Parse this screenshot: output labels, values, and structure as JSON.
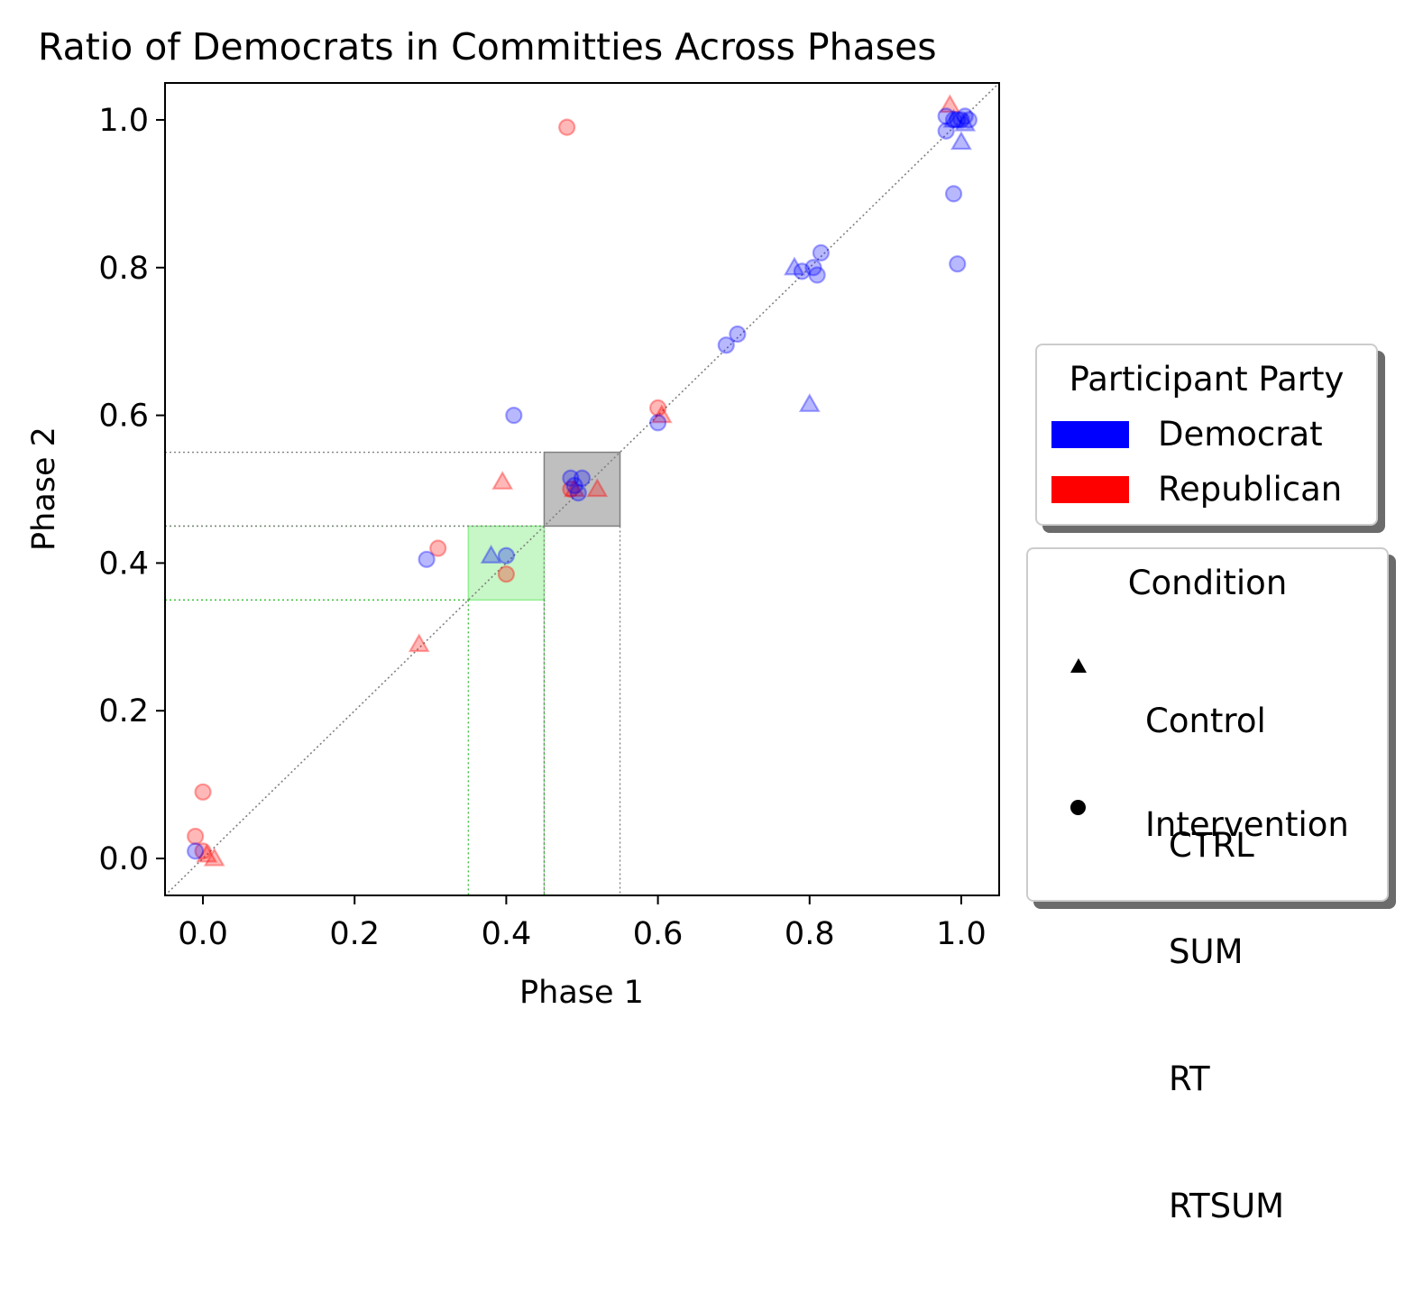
{
  "chart_data": {
    "type": "scatter",
    "title": "Ratio of Democrats in Committies Across Phases",
    "xlabel": "Phase 1",
    "ylabel": "Phase 2",
    "xlim": [
      -0.05,
      1.05
    ],
    "ylim": [
      -0.05,
      1.05
    ],
    "xticks": [
      0.0,
      0.2,
      0.4,
      0.6,
      0.8,
      1.0
    ],
    "yticks": [
      0.0,
      0.2,
      0.4,
      0.6,
      0.8,
      1.0
    ],
    "xtick_labels": [
      "0.0",
      "0.2",
      "0.4",
      "0.6",
      "0.8",
      "1.0"
    ],
    "ytick_labels": [
      "0.0",
      "0.2",
      "0.4",
      "0.6",
      "0.8",
      "1.0"
    ],
    "grid": false,
    "diagonal_reference_line": true,
    "highlight_regions": [
      {
        "x": [
          0.35,
          0.45
        ],
        "y": [
          0.35,
          0.45
        ],
        "color": "#90ee90"
      },
      {
        "x": [
          0.45,
          0.55
        ],
        "y": [
          0.45,
          0.55
        ],
        "color": "#808080"
      }
    ],
    "colors": {
      "Democrat": "#0000ff",
      "Republican": "#ff0000"
    },
    "points": [
      {
        "x": 0.48,
        "y": 0.99,
        "party": "Republican",
        "marker": "circle"
      },
      {
        "x": 0.0,
        "y": 0.09,
        "party": "Republican",
        "marker": "circle"
      },
      {
        "x": -0.01,
        "y": 0.03,
        "party": "Republican",
        "marker": "circle"
      },
      {
        "x": 0.0,
        "y": 0.01,
        "party": "Republican",
        "marker": "circle"
      },
      {
        "x": 0.31,
        "y": 0.42,
        "party": "Republican",
        "marker": "circle"
      },
      {
        "x": 0.4,
        "y": 0.385,
        "party": "Republican",
        "marker": "circle"
      },
      {
        "x": 0.6,
        "y": 0.61,
        "party": "Republican",
        "marker": "circle"
      },
      {
        "x": 0.485,
        "y": 0.5,
        "party": "Republican",
        "marker": "circle"
      },
      {
        "x": 0.015,
        "y": 0.0,
        "party": "Republican",
        "marker": "triangle"
      },
      {
        "x": 0.005,
        "y": 0.005,
        "party": "Republican",
        "marker": "triangle"
      },
      {
        "x": 0.285,
        "y": 0.29,
        "party": "Republican",
        "marker": "triangle"
      },
      {
        "x": 0.395,
        "y": 0.51,
        "party": "Republican",
        "marker": "triangle"
      },
      {
        "x": 0.605,
        "y": 0.6,
        "party": "Republican",
        "marker": "triangle"
      },
      {
        "x": 0.52,
        "y": 0.5,
        "party": "Republican",
        "marker": "triangle"
      },
      {
        "x": 0.49,
        "y": 0.5,
        "party": "Republican",
        "marker": "triangle"
      },
      {
        "x": 0.985,
        "y": 1.02,
        "party": "Republican",
        "marker": "triangle"
      },
      {
        "x": -0.01,
        "y": 0.01,
        "party": "Democrat",
        "marker": "circle"
      },
      {
        "x": 0.295,
        "y": 0.405,
        "party": "Democrat",
        "marker": "circle"
      },
      {
        "x": 0.4,
        "y": 0.41,
        "party": "Democrat",
        "marker": "circle"
      },
      {
        "x": 0.41,
        "y": 0.6,
        "party": "Democrat",
        "marker": "circle"
      },
      {
        "x": 0.485,
        "y": 0.515,
        "party": "Democrat",
        "marker": "circle"
      },
      {
        "x": 0.5,
        "y": 0.515,
        "party": "Democrat",
        "marker": "circle"
      },
      {
        "x": 0.495,
        "y": 0.495,
        "party": "Democrat",
        "marker": "circle"
      },
      {
        "x": 0.49,
        "y": 0.505,
        "party": "Democrat",
        "marker": "circle"
      },
      {
        "x": 0.6,
        "y": 0.59,
        "party": "Democrat",
        "marker": "circle"
      },
      {
        "x": 0.69,
        "y": 0.695,
        "party": "Democrat",
        "marker": "circle"
      },
      {
        "x": 0.705,
        "y": 0.71,
        "party": "Democrat",
        "marker": "circle"
      },
      {
        "x": 0.79,
        "y": 0.795,
        "party": "Democrat",
        "marker": "circle"
      },
      {
        "x": 0.805,
        "y": 0.8,
        "party": "Democrat",
        "marker": "circle"
      },
      {
        "x": 0.81,
        "y": 0.79,
        "party": "Democrat",
        "marker": "circle"
      },
      {
        "x": 0.815,
        "y": 0.82,
        "party": "Democrat",
        "marker": "circle"
      },
      {
        "x": 0.99,
        "y": 0.9,
        "party": "Democrat",
        "marker": "circle"
      },
      {
        "x": 0.995,
        "y": 0.805,
        "party": "Democrat",
        "marker": "circle"
      },
      {
        "x": 0.98,
        "y": 0.985,
        "party": "Democrat",
        "marker": "circle"
      },
      {
        "x": 0.98,
        "y": 1.005,
        "party": "Democrat",
        "marker": "circle"
      },
      {
        "x": 0.99,
        "y": 1.0,
        "party": "Democrat",
        "marker": "circle"
      },
      {
        "x": 0.995,
        "y": 1.0,
        "party": "Democrat",
        "marker": "circle"
      },
      {
        "x": 1.0,
        "y": 1.0,
        "party": "Democrat",
        "marker": "circle"
      },
      {
        "x": 1.005,
        "y": 1.005,
        "party": "Democrat",
        "marker": "circle"
      },
      {
        "x": 1.01,
        "y": 1.0,
        "party": "Democrat",
        "marker": "circle"
      },
      {
        "x": 0.38,
        "y": 0.41,
        "party": "Democrat",
        "marker": "triangle"
      },
      {
        "x": 0.78,
        "y": 0.8,
        "party": "Democrat",
        "marker": "triangle"
      },
      {
        "x": 0.8,
        "y": 0.615,
        "party": "Democrat",
        "marker": "triangle"
      },
      {
        "x": 1.0,
        "y": 0.97,
        "party": "Democrat",
        "marker": "triangle"
      },
      {
        "x": 1.005,
        "y": 0.995,
        "party": "Democrat",
        "marker": "triangle"
      },
      {
        "x": 0.99,
        "y": 1.0,
        "party": "Democrat",
        "marker": "triangle"
      }
    ]
  },
  "legends": {
    "party": {
      "title": "Participant Party",
      "items": [
        {
          "label": "Democrat",
          "color": "#0000ff"
        },
        {
          "label": "Republican",
          "color": "#ff0000"
        }
      ]
    },
    "condition": {
      "title": "Condition",
      "items": [
        {
          "marker": "triangle",
          "lines": [
            "Control",
            "CTRL"
          ]
        },
        {
          "marker": "circle",
          "lines": [
            "Intervention",
            "SUM",
            "RT",
            "RTSUM"
          ]
        }
      ]
    }
  }
}
